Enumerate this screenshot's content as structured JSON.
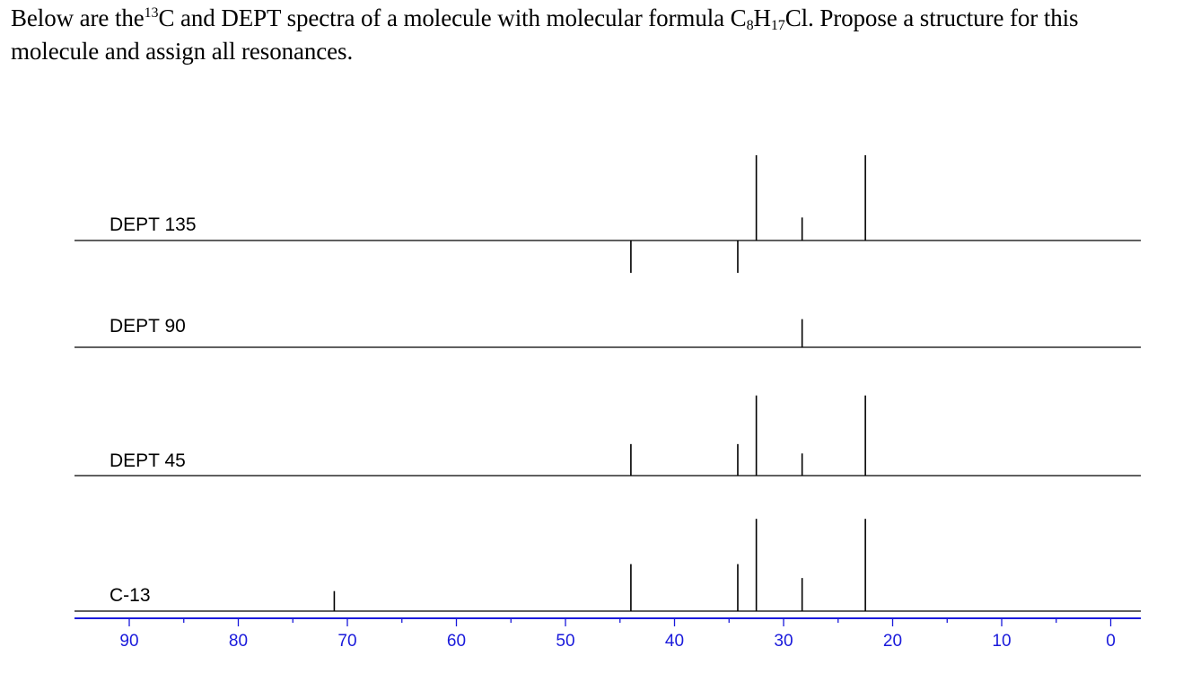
{
  "question": {
    "part1": "Below are the",
    "sup": "13",
    "part2": "C and DEPT spectra of a molecule with molecular formula C",
    "sub1": "8",
    "part3": "H",
    "sub2": "17",
    "part4": "Cl.  Propose a structure for this molecule and assign all resonances."
  },
  "colors": {
    "trace": "#000000",
    "axis": "#1a1adb"
  },
  "chart_data": {
    "type": "line",
    "xlabel": "",
    "xlim": [
      95,
      -3
    ],
    "reversed_x": true,
    "ticks": [
      90,
      80,
      70,
      60,
      50,
      40,
      30,
      20,
      10,
      0
    ],
    "minor_ticks": [
      85,
      75,
      65,
      55,
      45,
      35,
      25,
      15,
      5
    ],
    "series": [
      {
        "name": "DEPT 135",
        "peaks": [
          {
            "ppm": 44.0,
            "intensity": -0.38
          },
          {
            "ppm": 34.2,
            "intensity": -0.38
          },
          {
            "ppm": 32.5,
            "intensity": 1.0
          },
          {
            "ppm": 28.3,
            "intensity": 0.27
          },
          {
            "ppm": 22.5,
            "intensity": 1.0
          }
        ]
      },
      {
        "name": "DEPT 90",
        "peaks": [
          {
            "ppm": 28.3,
            "intensity": 0.33
          }
        ]
      },
      {
        "name": "DEPT 45",
        "peaks": [
          {
            "ppm": 44.0,
            "intensity": 0.37
          },
          {
            "ppm": 34.2,
            "intensity": 0.37
          },
          {
            "ppm": 32.5,
            "intensity": 0.94
          },
          {
            "ppm": 28.3,
            "intensity": 0.26
          },
          {
            "ppm": 22.5,
            "intensity": 0.94
          }
        ]
      },
      {
        "name": "C-13",
        "peaks": [
          {
            "ppm": 71.2,
            "intensity": 0.23
          },
          {
            "ppm": 44.0,
            "intensity": 0.54
          },
          {
            "ppm": 34.2,
            "intensity": 0.54
          },
          {
            "ppm": 32.5,
            "intensity": 1.06
          },
          {
            "ppm": 28.3,
            "intensity": 0.38
          },
          {
            "ppm": 22.5,
            "intensity": 1.06
          }
        ]
      }
    ]
  }
}
